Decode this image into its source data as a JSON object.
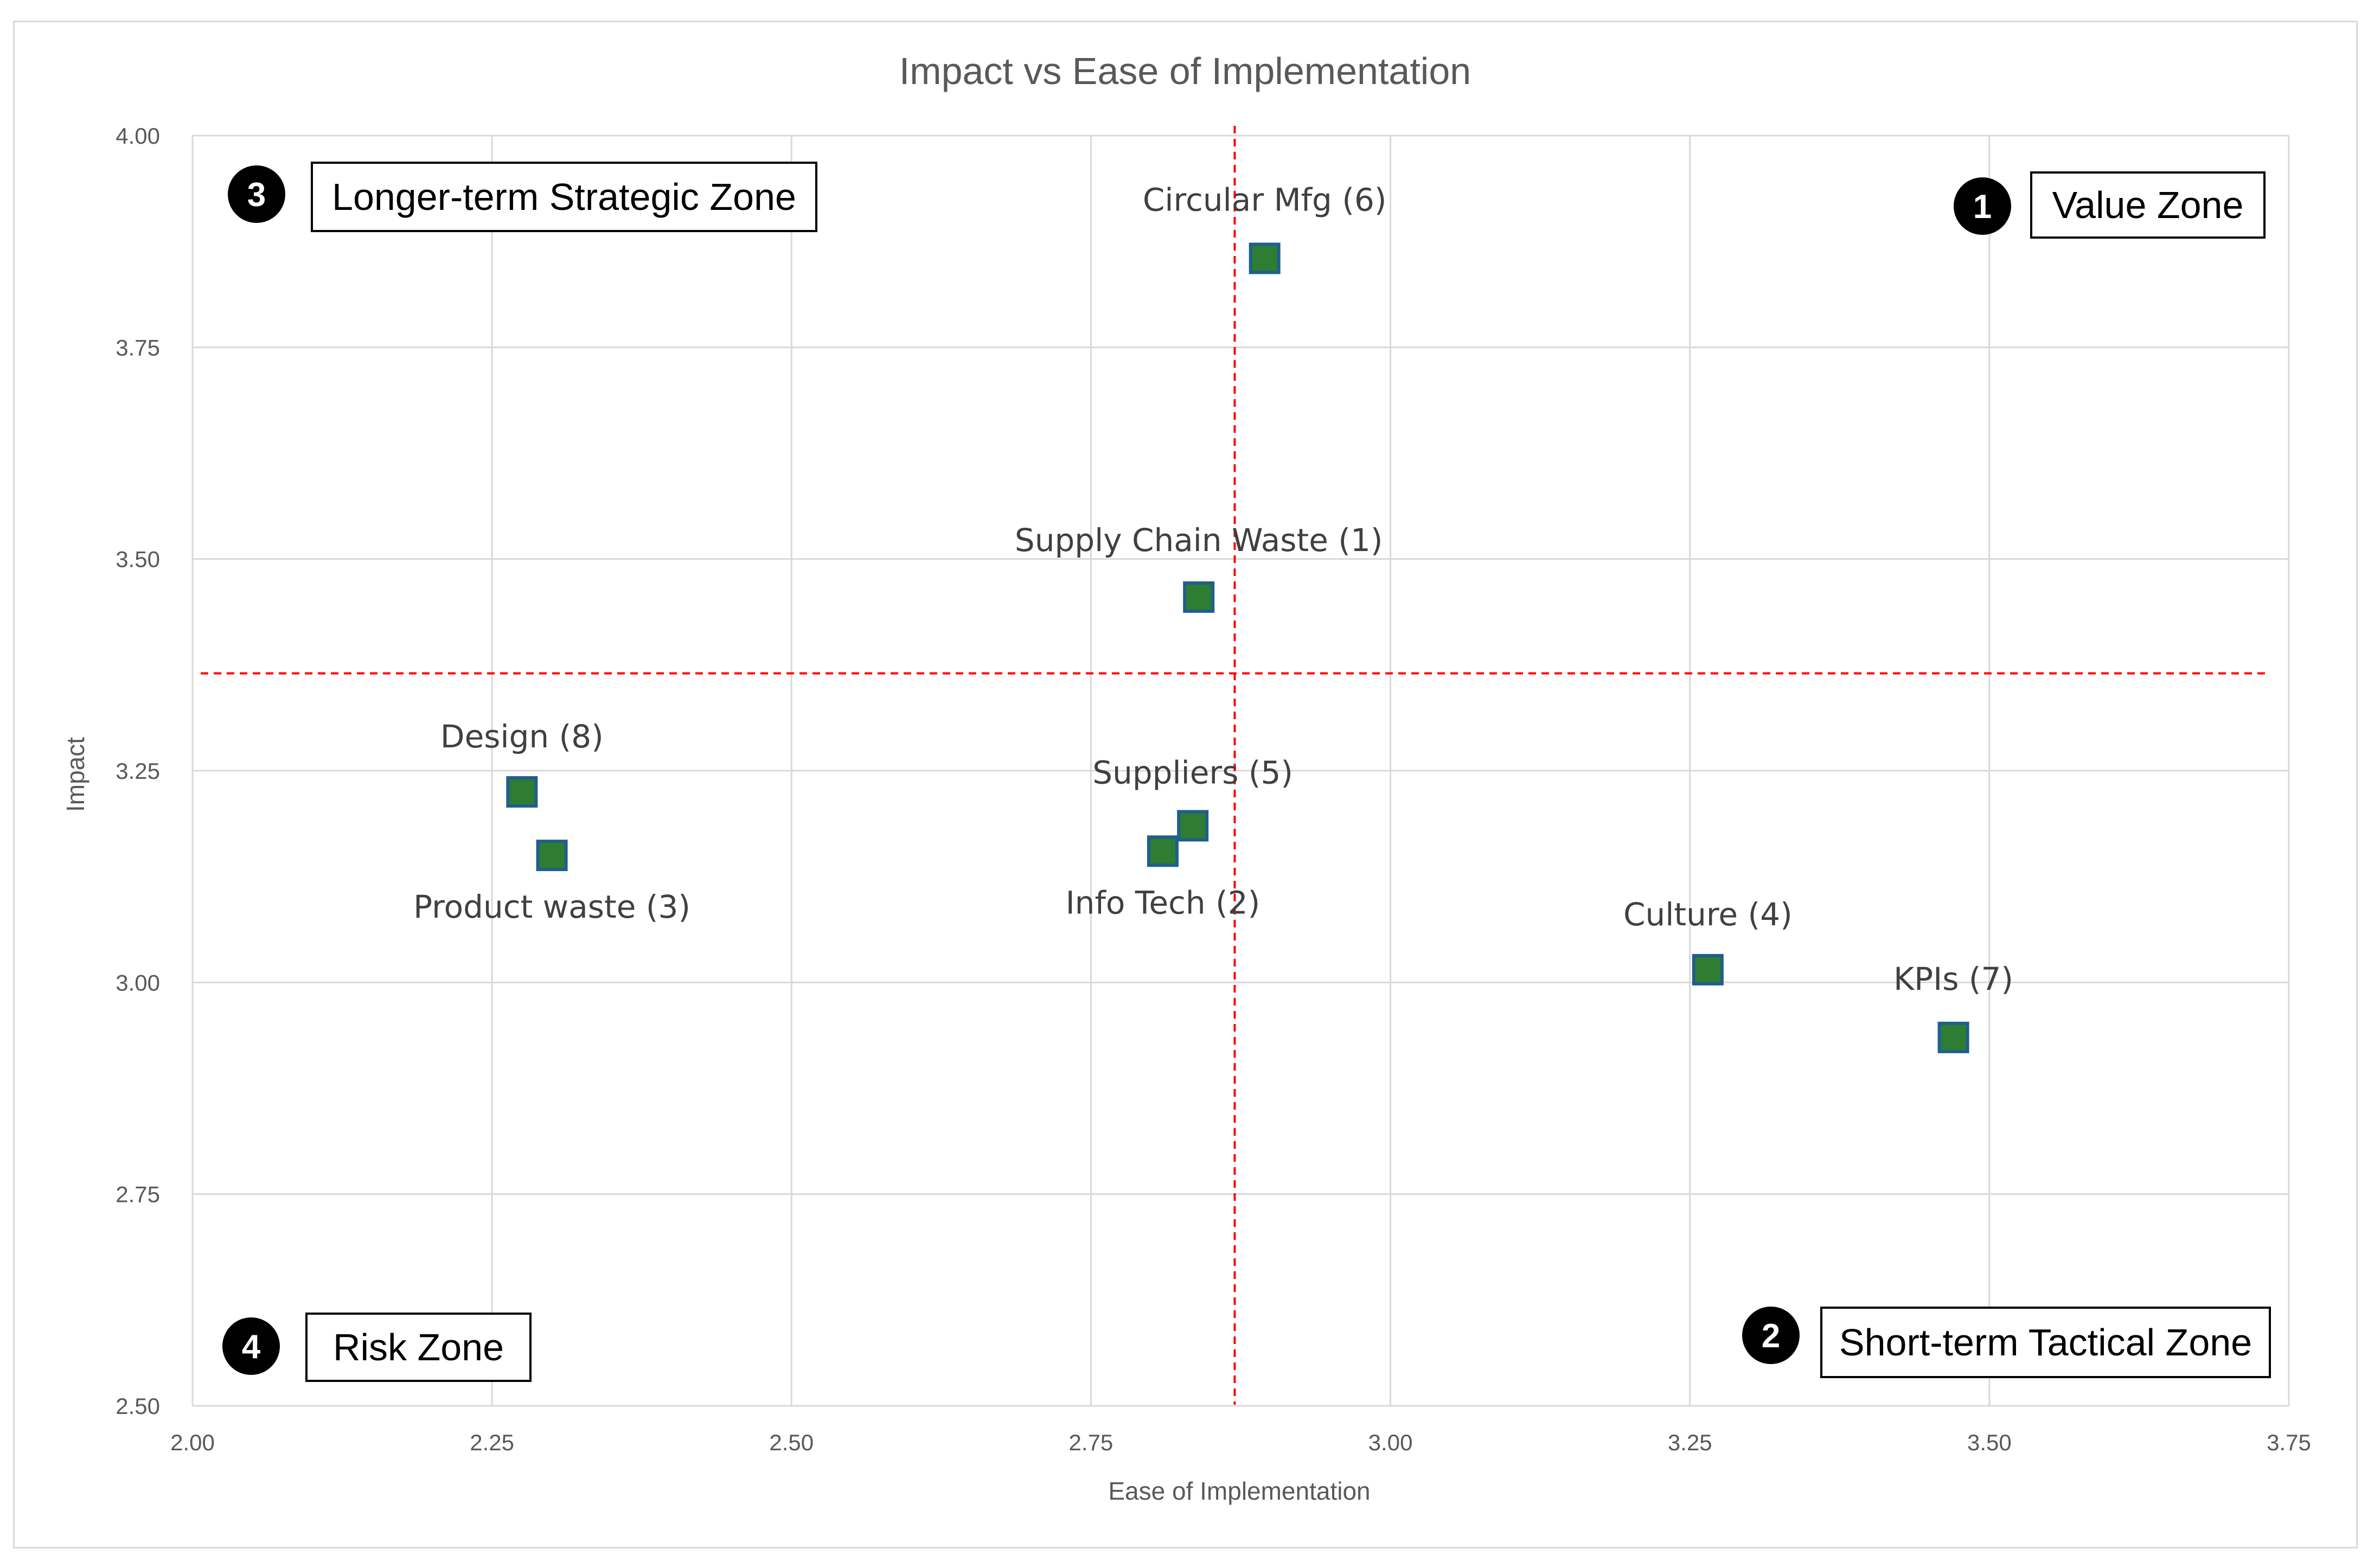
{
  "chart_data": {
    "type": "scatter",
    "title": "Impact vs Ease of Implementation",
    "xlabel": "Ease of Implementation",
    "ylabel": "Impact",
    "xlim": [
      2.0,
      3.75
    ],
    "ylim": [
      2.5,
      4.0
    ],
    "x_ticks": [
      "2.00",
      "2.25",
      "2.50",
      "2.75",
      "3.00",
      "3.25",
      "3.50",
      "3.75"
    ],
    "y_ticks": [
      "2.50",
      "2.75",
      "3.00",
      "3.25",
      "3.50",
      "3.75",
      "4.00"
    ],
    "grid": true,
    "marker_color": "#2e7d32",
    "marker_edge_color": "#1f5f8b",
    "divider_color": "#ff0000",
    "points": [
      {
        "label": "Supply Chain Waste (1)",
        "x": 2.84,
        "y": 3.455
      },
      {
        "label": "Info Tech (2)",
        "x": 2.81,
        "y": 3.155
      },
      {
        "label": "Product  waste (3)",
        "x": 2.3,
        "y": 3.15
      },
      {
        "label": "Culture (4)",
        "x": 3.265,
        "y": 3.015
      },
      {
        "label": "Suppliers (5)",
        "x": 2.835,
        "y": 3.185
      },
      {
        "label": "Circular Mfg (6)",
        "x": 2.895,
        "y": 3.855
      },
      {
        "label": "KPIs (7)",
        "x": 3.47,
        "y": 2.935
      },
      {
        "label": "Design (8)",
        "x": 2.275,
        "y": 3.225
      }
    ],
    "dividers": {
      "x": 2.87,
      "y": 3.365
    },
    "zones": [
      {
        "number": "1",
        "label": "Value Zone",
        "position": "top-right"
      },
      {
        "number": "2",
        "label": "Short-term  Tactical Zone",
        "position": "bottom-right"
      },
      {
        "number": "3",
        "label": "Longer-term  Strategic Zone",
        "position": "top-left"
      },
      {
        "number": "4",
        "label": "Risk Zone",
        "position": "bottom-left"
      }
    ]
  }
}
